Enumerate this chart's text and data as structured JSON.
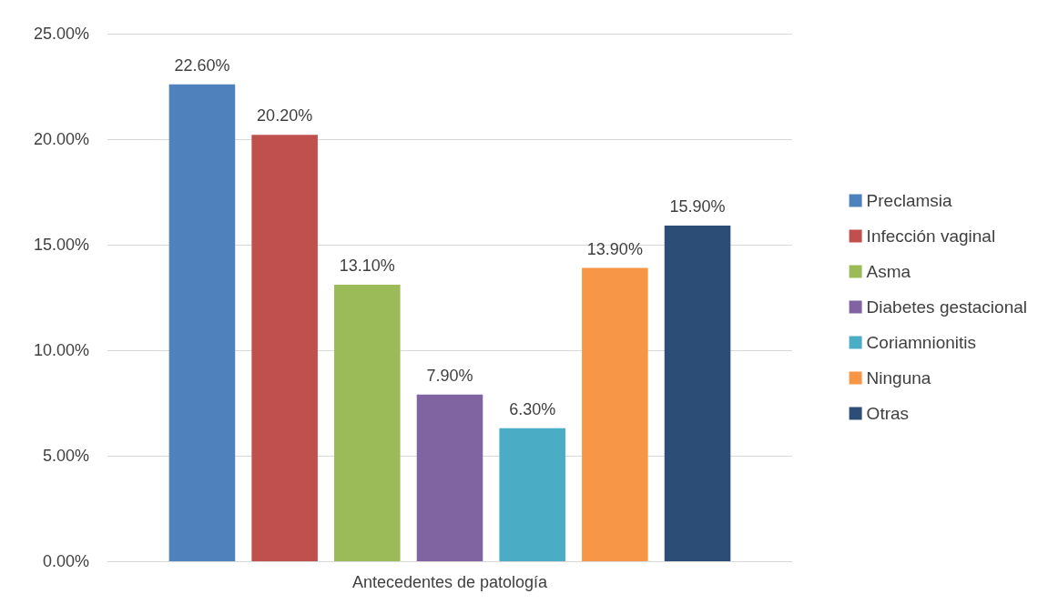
{
  "chart_data": {
    "type": "bar",
    "categories": [
      "Antecedentes de patología"
    ],
    "series": [
      {
        "name": "Preclamsia",
        "color": "#4f81bd",
        "values": [
          22.6
        ],
        "value_labels": [
          "22.60%"
        ]
      },
      {
        "name": "Infección vaginal",
        "color": "#c0504d",
        "values": [
          20.2
        ],
        "value_labels": [
          "20.20%"
        ]
      },
      {
        "name": "Asma",
        "color": "#9bbb59",
        "values": [
          13.1
        ],
        "value_labels": [
          "13.10%"
        ]
      },
      {
        "name": "Diabetes gestacional",
        "color": "#8064a2",
        "values": [
          7.9
        ],
        "value_labels": [
          "7.90%"
        ]
      },
      {
        "name": "Coriamnionitis",
        "color": "#4bacc6",
        "values": [
          6.3
        ],
        "value_labels": [
          "6.30%"
        ]
      },
      {
        "name": "Ninguna",
        "color": "#f79646",
        "values": [
          13.9
        ],
        "value_labels": [
          "13.90%"
        ]
      },
      {
        "name": "Otras",
        "color": "#2c4d75",
        "values": [
          15.9
        ],
        "value_labels": [
          "15.90%"
        ]
      }
    ],
    "ylim": [
      0,
      25
    ],
    "yticks": [
      {
        "value": 0,
        "label": "0.00%"
      },
      {
        "value": 5,
        "label": "5.00%"
      },
      {
        "value": 10,
        "label": "10.00%"
      },
      {
        "value": 15,
        "label": "15.00%"
      },
      {
        "value": 20,
        "label": "20.00%"
      },
      {
        "value": 25,
        "label": "25.00%"
      }
    ],
    "grid": "y",
    "legend": "right"
  }
}
